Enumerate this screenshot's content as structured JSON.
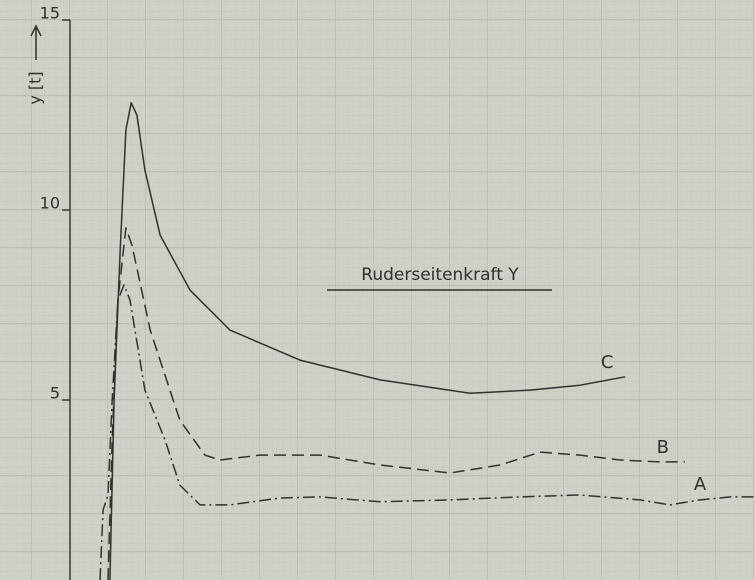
{
  "chart_data": {
    "type": "line",
    "title": "Ruderseitenkraft Y",
    "y_label": "y [t]",
    "xlim": [
      0,
      18
    ],
    "ylim": [
      0,
      15
    ],
    "yticks": [
      5,
      10,
      15
    ],
    "grid": true,
    "series": [
      {
        "name": "A",
        "color": "#2f322e",
        "style": "dashdot",
        "x": [
          0.79,
          0.87,
          1.0,
          1.11,
          1.26,
          1.42,
          1.58,
          1.97,
          2.5,
          2.89,
          3.42,
          4.21,
          5.53,
          6.58,
          8.16,
          10,
          11.84,
          13.42,
          15,
          15.79,
          16.58,
          17.37,
          18
        ],
        "values": [
          0.26,
          2.11,
          2.5,
          5,
          7.63,
          8.03,
          7.63,
          5.26,
          3.95,
          2.76,
          2.24,
          2.24,
          2.42,
          2.45,
          2.32,
          2.37,
          2.45,
          2.5,
          2.37,
          2.24,
          2.37,
          2.45,
          2.45
        ]
      },
      {
        "name": "B",
        "color": "#2f322e",
        "style": "dashed",
        "x": [
          1.0,
          1.11,
          1.26,
          1.47,
          1.63,
          2.11,
          2.89,
          3.55,
          3.95,
          5,
          6.58,
          8.16,
          10,
          11.32,
          12.37,
          13.42,
          14.47,
          15.53,
          16.18
        ],
        "values": [
          0.26,
          3.95,
          7.63,
          9.53,
          9.08,
          6.84,
          4.47,
          3.55,
          3.42,
          3.55,
          3.55,
          3.29,
          3.08,
          3.29,
          3.63,
          3.55,
          3.42,
          3.37,
          3.37
        ]
      },
      {
        "name": "C",
        "color": "#2f322e",
        "style": "solid",
        "x": [
          1.05,
          1.16,
          1.32,
          1.47,
          1.61,
          1.76,
          1.97,
          2.37,
          3.16,
          4.21,
          6.05,
          8.16,
          10.53,
          12.11,
          13.42,
          14.61
        ],
        "values": [
          0.26,
          5,
          8.95,
          12.11,
          12.82,
          12.5,
          11.05,
          9.34,
          7.89,
          6.84,
          6.05,
          5.53,
          5.18,
          5.26,
          5.39,
          5.61
        ]
      }
    ]
  }
}
